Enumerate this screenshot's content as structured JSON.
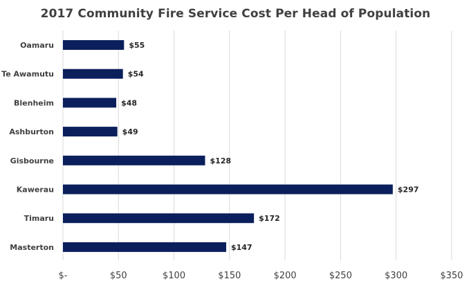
{
  "chart_data": {
    "type": "bar",
    "orientation": "horizontal",
    "title": "2017 Community  Fire Service Cost Per Head of Population",
    "categories": [
      "Oamaru",
      "Te Awamutu",
      "Blenheim",
      "Ashburton",
      "Gisbourne",
      "Kawerau",
      "Timaru",
      "Masterton"
    ],
    "values": [
      55,
      54,
      48,
      49,
      128,
      297,
      172,
      147
    ],
    "value_labels": [
      "$55",
      "$54",
      "$48",
      "$49",
      "$128",
      "$297",
      "$172",
      "$147"
    ],
    "xlim": [
      0,
      350
    ],
    "x_ticks": [
      0,
      50,
      100,
      150,
      200,
      250,
      300,
      350
    ],
    "x_tick_labels": [
      "$-",
      "$50",
      "$100",
      "$150",
      "$200",
      "$250",
      "$300",
      "$350"
    ],
    "grid": true,
    "legend": "none",
    "bar_color": "#0b1f5c"
  }
}
